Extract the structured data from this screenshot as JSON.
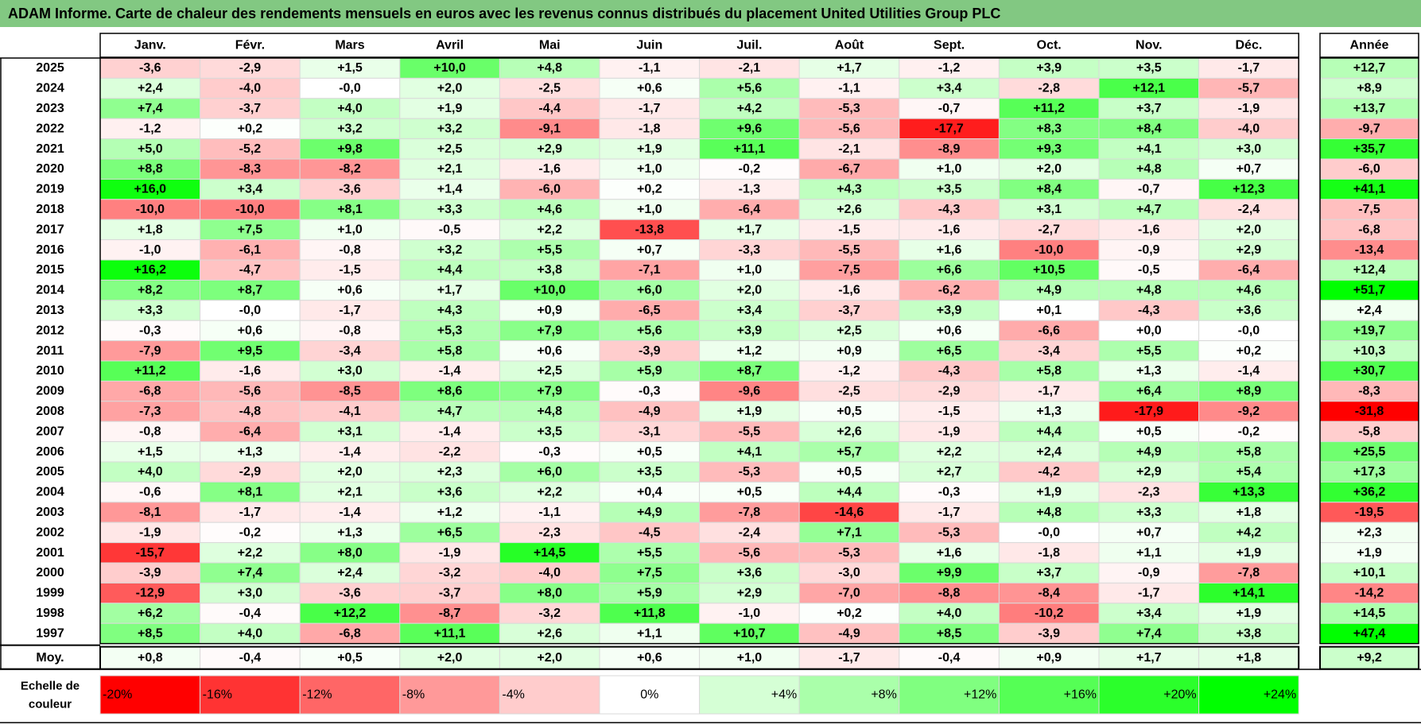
{
  "title": "ADAM Informe. Carte de chaleur des rendements mensuels en euros avec les revenus connus distribués du placement United Utilities Group PLC",
  "chart_data": {
    "type": "heatmap",
    "title": "ADAM Informe. Carte de chaleur des rendements mensuels en euros avec les revenus connus distribués du placement United Utilities Group PLC",
    "months": [
      "Janv.",
      "Févr.",
      "Mars",
      "Avril",
      "Mai",
      "Juin",
      "Juil.",
      "Août",
      "Sept.",
      "Oct.",
      "Nov.",
      "Déc."
    ],
    "year_header": "Année",
    "rows": [
      {
        "year": "2025",
        "months": [
          "-3,6",
          "-2,9",
          "+1,5",
          "+10,0",
          "+4,8",
          "-1,1",
          "-2,1",
          "+1,7",
          "-1,2",
          "+3,9",
          "+3,5",
          "-1,7"
        ],
        "annual": "+12,7"
      },
      {
        "year": "2024",
        "months": [
          "+2,4",
          "-4,0",
          "-0,0",
          "+2,0",
          "-2,5",
          "+0,6",
          "+5,6",
          "-1,1",
          "+3,4",
          "-2,8",
          "+12,1",
          "-5,7"
        ],
        "annual": "+8,9"
      },
      {
        "year": "2023",
        "months": [
          "+7,4",
          "-3,7",
          "+4,0",
          "+1,9",
          "-4,4",
          "-1,7",
          "+4,2",
          "-5,3",
          "-0,7",
          "+11,2",
          "+3,7",
          "-1,9"
        ],
        "annual": "+13,7"
      },
      {
        "year": "2022",
        "months": [
          "-1,2",
          "+0,2",
          "+3,2",
          "+3,2",
          "-9,1",
          "-1,8",
          "+9,6",
          "-5,6",
          "-17,7",
          "+8,3",
          "+8,4",
          "-4,0"
        ],
        "annual": "-9,7"
      },
      {
        "year": "2021",
        "months": [
          "+5,0",
          "-5,2",
          "+9,8",
          "+2,5",
          "+2,9",
          "+1,9",
          "+11,1",
          "-2,1",
          "-8,9",
          "+9,3",
          "+4,1",
          "+3,0"
        ],
        "annual": "+35,7"
      },
      {
        "year": "2020",
        "months": [
          "+8,8",
          "-8,3",
          "-8,2",
          "+2,1",
          "-1,6",
          "+1,0",
          "-0,2",
          "-6,7",
          "+1,0",
          "+2,0",
          "+4,8",
          "+0,7"
        ],
        "annual": "-6,0"
      },
      {
        "year": "2019",
        "months": [
          "+16,0",
          "+3,4",
          "-3,6",
          "+1,4",
          "-6,0",
          "+0,2",
          "-1,3",
          "+4,3",
          "+3,5",
          "+8,4",
          "-0,7",
          "+12,3"
        ],
        "annual": "+41,1"
      },
      {
        "year": "2018",
        "months": [
          "-10,0",
          "-10,0",
          "+8,1",
          "+3,3",
          "+4,6",
          "+1,0",
          "-6,4",
          "+2,6",
          "-4,3",
          "+3,1",
          "+4,7",
          "-2,4"
        ],
        "annual": "-7,5"
      },
      {
        "year": "2017",
        "months": [
          "+1,8",
          "+7,5",
          "+1,0",
          "-0,5",
          "+2,2",
          "-13,8",
          "+1,7",
          "-1,5",
          "-1,6",
          "-2,7",
          "-1,6",
          "+2,0"
        ],
        "annual": "-6,8"
      },
      {
        "year": "2016",
        "months": [
          "-1,0",
          "-6,1",
          "-0,8",
          "+3,2",
          "+5,5",
          "+0,7",
          "-3,3",
          "-5,5",
          "+1,6",
          "-10,0",
          "-0,9",
          "+2,9"
        ],
        "annual": "-13,4"
      },
      {
        "year": "2015",
        "months": [
          "+16,2",
          "-4,7",
          "-1,5",
          "+4,4",
          "+3,8",
          "-7,1",
          "+1,0",
          "-7,5",
          "+6,6",
          "+10,5",
          "-0,5",
          "-6,4"
        ],
        "annual": "+12,4"
      },
      {
        "year": "2014",
        "months": [
          "+8,2",
          "+8,7",
          "+0,6",
          "+1,7",
          "+10,0",
          "+6,0",
          "+2,0",
          "-1,6",
          "-6,2",
          "+4,9",
          "+4,8",
          "+4,6"
        ],
        "annual": "+51,7"
      },
      {
        "year": "2013",
        "months": [
          "+3,3",
          "-0,0",
          "-1,7",
          "+4,3",
          "+0,9",
          "-6,5",
          "+3,4",
          "-3,7",
          "+3,9",
          "+0,1",
          "-4,3",
          "+3,6"
        ],
        "annual": "+2,4"
      },
      {
        "year": "2012",
        "months": [
          "-0,3",
          "+0,6",
          "-0,8",
          "+5,3",
          "+7,9",
          "+5,6",
          "+3,9",
          "+2,5",
          "+0,6",
          "-6,6",
          "+0,0",
          "-0,0"
        ],
        "annual": "+19,7"
      },
      {
        "year": "2011",
        "months": [
          "-7,9",
          "+9,5",
          "-3,4",
          "+5,8",
          "+0,6",
          "-3,9",
          "+1,2",
          "+0,9",
          "+6,5",
          "-3,4",
          "+5,5",
          "+0,2"
        ],
        "annual": "+10,3"
      },
      {
        "year": "2010",
        "months": [
          "+11,2",
          "-1,6",
          "+3,0",
          "-1,4",
          "+2,5",
          "+5,9",
          "+8,7",
          "-1,2",
          "-4,3",
          "+5,8",
          "+1,3",
          "-1,4"
        ],
        "annual": "+30,7"
      },
      {
        "year": "2009",
        "months": [
          "-6,8",
          "-5,6",
          "-8,5",
          "+8,6",
          "+7,9",
          "-0,3",
          "-9,6",
          "-2,5",
          "-2,9",
          "-1,7",
          "+6,4",
          "+8,9"
        ],
        "annual": "-8,3"
      },
      {
        "year": "2008",
        "months": [
          "-7,3",
          "-4,8",
          "-4,1",
          "+4,7",
          "+4,8",
          "-4,9",
          "+1,9",
          "+0,5",
          "-1,5",
          "+1,3",
          "-17,9",
          "-9,2"
        ],
        "annual": "-31,8"
      },
      {
        "year": "2007",
        "months": [
          "-0,8",
          "-6,4",
          "+3,1",
          "-1,4",
          "+3,5",
          "-3,1",
          "-5,5",
          "+2,6",
          "-1,9",
          "+4,4",
          "+0,5",
          "-0,2"
        ],
        "annual": "-5,8"
      },
      {
        "year": "2006",
        "months": [
          "+1,5",
          "+1,3",
          "-1,4",
          "-2,2",
          "-0,3",
          "+0,5",
          "+4,1",
          "+5,7",
          "+2,2",
          "+2,4",
          "+4,9",
          "+5,8"
        ],
        "annual": "+25,5"
      },
      {
        "year": "2005",
        "months": [
          "+4,0",
          "-2,9",
          "+2,0",
          "+2,3",
          "+6,0",
          "+3,5",
          "-5,3",
          "+0,5",
          "+2,7",
          "-4,2",
          "+2,9",
          "+5,4"
        ],
        "annual": "+17,3"
      },
      {
        "year": "2004",
        "months": [
          "-0,6",
          "+8,1",
          "+2,1",
          "+3,6",
          "+2,2",
          "+0,4",
          "+0,5",
          "+4,4",
          "-0,3",
          "+1,9",
          "-2,3",
          "+13,3"
        ],
        "annual": "+36,2"
      },
      {
        "year": "2003",
        "months": [
          "-8,1",
          "-1,7",
          "-1,4",
          "+1,2",
          "-1,1",
          "+4,9",
          "-7,8",
          "-14,6",
          "-1,7",
          "+4,8",
          "+3,3",
          "+1,8"
        ],
        "annual": "-19,5"
      },
      {
        "year": "2002",
        "months": [
          "-1,9",
          "-0,2",
          "+1,3",
          "+6,5",
          "-2,3",
          "-4,5",
          "-2,4",
          "+7,1",
          "-5,3",
          "-0,0",
          "+0,7",
          "+4,2"
        ],
        "annual": "+2,3"
      },
      {
        "year": "2001",
        "months": [
          "-15,7",
          "+2,2",
          "+8,0",
          "-1,9",
          "+14,5",
          "+5,5",
          "-5,6",
          "-5,3",
          "+1,6",
          "-1,8",
          "+1,1",
          "+1,9"
        ],
        "annual": "+1,9"
      },
      {
        "year": "2000",
        "months": [
          "-3,9",
          "+7,4",
          "+2,4",
          "-3,2",
          "-4,0",
          "+7,5",
          "+3,6",
          "-3,0",
          "+9,9",
          "+3,7",
          "-0,9",
          "-7,8"
        ],
        "annual": "+10,1"
      },
      {
        "year": "1999",
        "months": [
          "-12,9",
          "+3,0",
          "-3,6",
          "-3,7",
          "+8,0",
          "+5,9",
          "+2,9",
          "-7,0",
          "-8,8",
          "-8,4",
          "-1,7",
          "+14,1"
        ],
        "annual": "-14,2"
      },
      {
        "year": "1998",
        "months": [
          "+6,2",
          "-0,4",
          "+12,2",
          "-8,7",
          "-3,2",
          "+11,8",
          "-1,0",
          "+0,2",
          "+4,0",
          "-10,2",
          "+3,4",
          "+1,9"
        ],
        "annual": "+14,5"
      },
      {
        "year": "1997",
        "months": [
          "+8,5",
          "+4,0",
          "-6,8",
          "+11,1",
          "+2,6",
          "+1,1",
          "+10,7",
          "-4,9",
          "+8,5",
          "-3,9",
          "+7,4",
          "+3,8"
        ],
        "annual": "+47,4"
      }
    ],
    "average": {
      "label": "Moy.",
      "months": [
        "+0,8",
        "-0,4",
        "+0,5",
        "+2,0",
        "+2,0",
        "+0,6",
        "+1,0",
        "-1,7",
        "-0,4",
        "+0,9",
        "+1,7",
        "+1,8"
      ],
      "annual": "+9,2"
    },
    "scale_label_line1": "Echelle de",
    "scale_label_line2": "couleur",
    "scale": [
      "-20%",
      "-16%",
      "-12%",
      "-8%",
      "-4%",
      "0%",
      "+4%",
      "+8%",
      "+12%",
      "+16%",
      "+20%",
      "+24%"
    ]
  }
}
